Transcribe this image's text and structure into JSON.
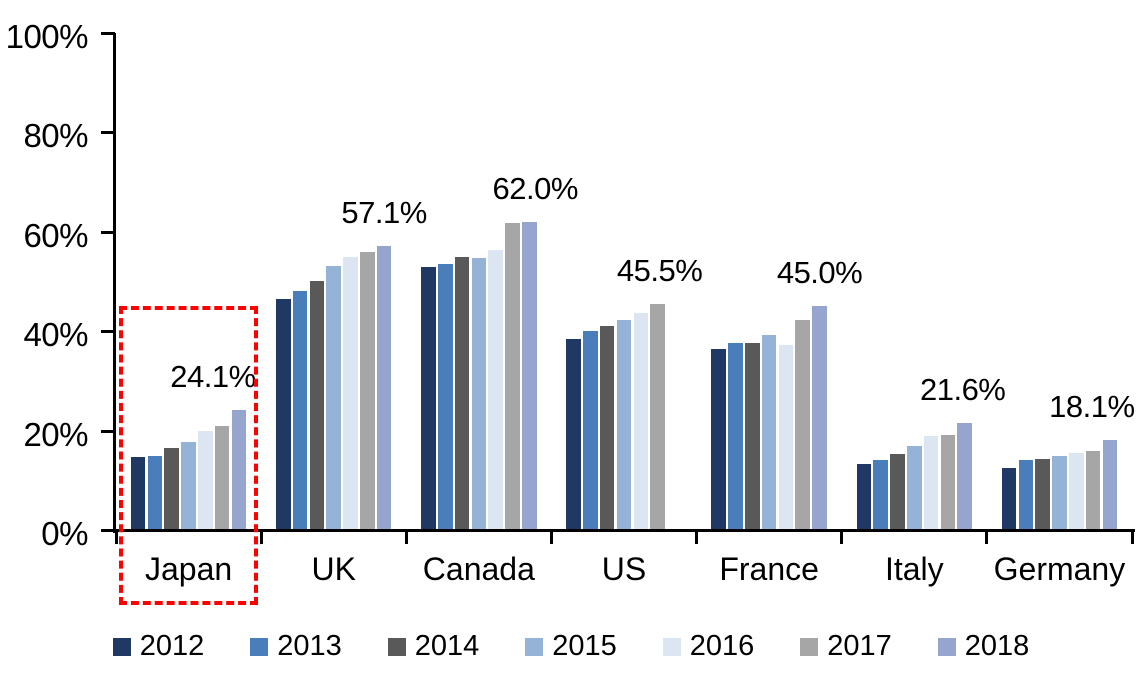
{
  "chart_data": {
    "type": "bar",
    "title": "",
    "unit": "%",
    "categories": [
      "Japan",
      "UK",
      "Canada",
      "US",
      "France",
      "Italy",
      "Germany"
    ],
    "series": [
      {
        "name": "2012",
        "color": "#1F3864",
        "values": [
          14.6,
          46.5,
          52.9,
          38.4,
          36.4,
          13.3,
          12.5
        ]
      },
      {
        "name": "2013",
        "color": "#4A7EBB",
        "values": [
          14.8,
          48.0,
          53.5,
          40.0,
          37.6,
          14.1,
          14.1
        ]
      },
      {
        "name": "2014",
        "color": "#595959",
        "values": [
          16.4,
          50.1,
          55.0,
          41.1,
          37.6,
          15.3,
          14.3
        ]
      },
      {
        "name": "2015",
        "color": "#95B3D7",
        "values": [
          17.8,
          53.2,
          54.7,
          42.3,
          39.2,
          16.9,
          14.8
        ]
      },
      {
        "name": "2016",
        "color": "#DCE6F2",
        "values": [
          20.0,
          54.9,
          56.3,
          43.6,
          37.3,
          19.0,
          15.4
        ]
      },
      {
        "name": "2017",
        "color": "#A6A6A6",
        "values": [
          21.0,
          55.9,
          61.7,
          45.5,
          42.3,
          19.1,
          15.9
        ]
      },
      {
        "name": "2018",
        "color": "#95A5CE",
        "values": [
          24.1,
          57.1,
          62.0,
          null,
          45.0,
          21.6,
          18.1
        ]
      }
    ],
    "end_labels": [
      {
        "category": "Japan",
        "text": "24.1%",
        "dx": -26
      },
      {
        "category": "UK",
        "text": "57.1%",
        "dx": 0
      },
      {
        "category": "Canada",
        "text": "62.0%",
        "dx": 6
      },
      {
        "category": "US",
        "text": "45.5%",
        "dx": 2
      },
      {
        "category": "France",
        "text": "45.0%",
        "dx": 0
      },
      {
        "category": "Italy",
        "text": "21.6%",
        "dx": -2
      },
      {
        "category": "Germany",
        "text": "18.1%",
        "dx": -18
      }
    ],
    "y_ticks": [
      {
        "value": 0,
        "label": "0%"
      },
      {
        "value": 20,
        "label": "20%"
      },
      {
        "value": 40,
        "label": "40%"
      },
      {
        "value": 60,
        "label": "60%"
      },
      {
        "value": 80,
        "label": "80%"
      },
      {
        "value": 100,
        "label": "100%"
      }
    ],
    "ylim": [
      0,
      100
    ],
    "grid": false,
    "legend_position": "bottom",
    "highlight": {
      "category": "Japan",
      "color": "#FF0000",
      "style": "dashed"
    }
  }
}
